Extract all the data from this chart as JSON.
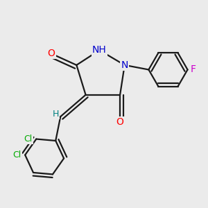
{
  "bg_color": "#ebebeb",
  "bond_color": "#1a1a1a",
  "atom_colors": {
    "O": "#ff0000",
    "N": "#0000cc",
    "H": "#008080",
    "Cl": "#00aa00",
    "F": "#cc00cc",
    "C": "#1a1a1a"
  },
  "bond_width": 1.6,
  "font_size": 10,
  "figsize": [
    3.0,
    3.0
  ],
  "dpi": 100
}
